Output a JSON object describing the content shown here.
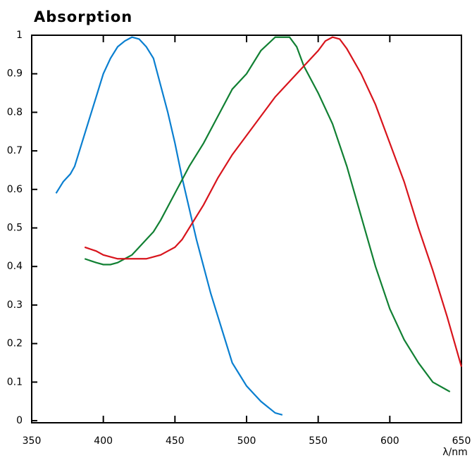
{
  "chart_data": {
    "type": "line",
    "title": "Absorption",
    "x_label": "λ/nm",
    "xlim": [
      350,
      650
    ],
    "xticks": [
      350,
      400,
      450,
      500,
      550,
      600,
      650
    ],
    "ylim": [
      0,
      1
    ],
    "yticks": [
      0,
      0.1,
      0.2,
      0.3,
      0.4,
      0.5,
      0.6,
      0.7,
      0.8,
      0.9,
      1
    ],
    "series": [
      {
        "color": "#0a7fd0",
        "x": [
          367,
          372,
          377,
          380,
          385,
          390,
          395,
          400,
          405,
          410,
          415,
          420,
          425,
          430,
          435,
          440,
          445,
          450,
          455,
          460,
          465,
          470,
          475,
          480,
          485,
          490,
          495,
          500,
          505,
          510,
          515,
          520,
          525
        ],
        "values": [
          0.59,
          0.62,
          0.64,
          0.66,
          0.72,
          0.78,
          0.84,
          0.9,
          0.94,
          0.97,
          0.985,
          0.995,
          0.99,
          0.97,
          0.94,
          0.87,
          0.8,
          0.72,
          0.63,
          0.55,
          0.47,
          0.4,
          0.33,
          0.27,
          0.21,
          0.15,
          0.12,
          0.09,
          0.07,
          0.05,
          0.035,
          0.02,
          0.015
        ]
      },
      {
        "color": "#118033",
        "x": [
          387,
          395,
          400,
          405,
          410,
          415,
          420,
          425,
          430,
          435,
          440,
          450,
          460,
          470,
          480,
          490,
          500,
          510,
          520,
          530,
          535,
          540,
          550,
          560,
          570,
          580,
          590,
          600,
          610,
          620,
          630,
          642
        ],
        "values": [
          0.42,
          0.41,
          0.405,
          0.405,
          0.41,
          0.42,
          0.43,
          0.45,
          0.47,
          0.49,
          0.52,
          0.59,
          0.66,
          0.72,
          0.79,
          0.86,
          0.9,
          0.96,
          0.995,
          0.995,
          0.97,
          0.92,
          0.85,
          0.77,
          0.66,
          0.53,
          0.4,
          0.29,
          0.21,
          0.15,
          0.1,
          0.075
        ]
      },
      {
        "color": "#d8141c",
        "x": [
          387,
          395,
          400,
          410,
          420,
          430,
          435,
          440,
          445,
          450,
          455,
          460,
          470,
          480,
          490,
          500,
          510,
          520,
          530,
          540,
          550,
          555,
          560,
          565,
          570,
          580,
          590,
          600,
          610,
          620,
          630,
          640,
          650
        ],
        "values": [
          0.45,
          0.44,
          0.43,
          0.42,
          0.42,
          0.42,
          0.425,
          0.43,
          0.44,
          0.45,
          0.47,
          0.5,
          0.56,
          0.63,
          0.69,
          0.74,
          0.79,
          0.84,
          0.88,
          0.92,
          0.96,
          0.985,
          0.995,
          0.99,
          0.965,
          0.9,
          0.82,
          0.72,
          0.62,
          0.5,
          0.39,
          0.27,
          0.14
        ]
      }
    ]
  }
}
